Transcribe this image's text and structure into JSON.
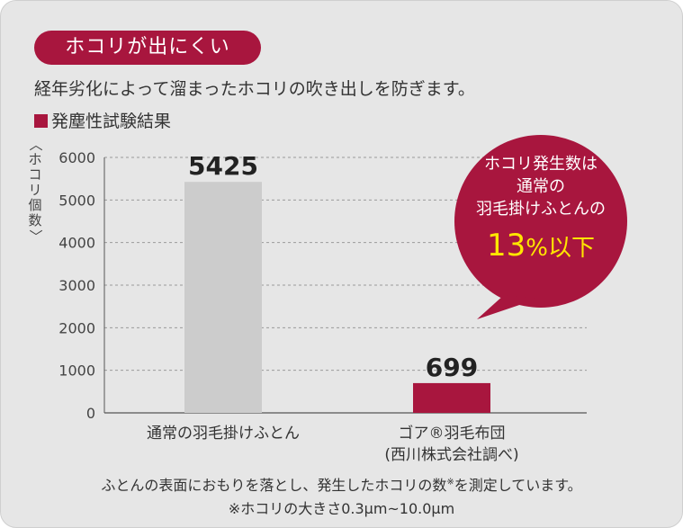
{
  "badge": {
    "label": "ホコリが出にくい"
  },
  "description": "経年劣化によって溜まったホコリの吹き出しを防ぎます。",
  "section_title": "発塵性試験結果",
  "colors": {
    "accent": "#a8163e",
    "bar_regular": "#cccccc",
    "bar_gore": "#a8163e",
    "callout_highlight": "#ffe600",
    "background": "#e6e6e6"
  },
  "chart_data": {
    "type": "bar",
    "ylabel": "〈ホコリ個数〉",
    "ylim": [
      0,
      6000
    ],
    "yticks": [
      "0",
      "1000",
      "2000",
      "3000",
      "4000",
      "5000",
      "6000"
    ],
    "grid": true,
    "categories": [
      "通常の羽毛掛けふとん",
      "ゴア®羽毛布団\n(西川株式会社調べ)"
    ],
    "values": [
      5425,
      699
    ],
    "data_labels": [
      "5425",
      "699"
    ]
  },
  "callout": {
    "line1": "ホコリ発生数は",
    "line2": "通常の",
    "line3": "羽毛掛けふとんの",
    "percent_value": "13",
    "percent_unit": "%以下"
  },
  "footnote": {
    "line1": "ふとんの表面におもりを落とし、発生したホコリの数",
    "line1_mark": "※",
    "line1_end": "を測定しています。",
    "line2": "※ホコリの大きさ0.3μm~10.0μm"
  }
}
